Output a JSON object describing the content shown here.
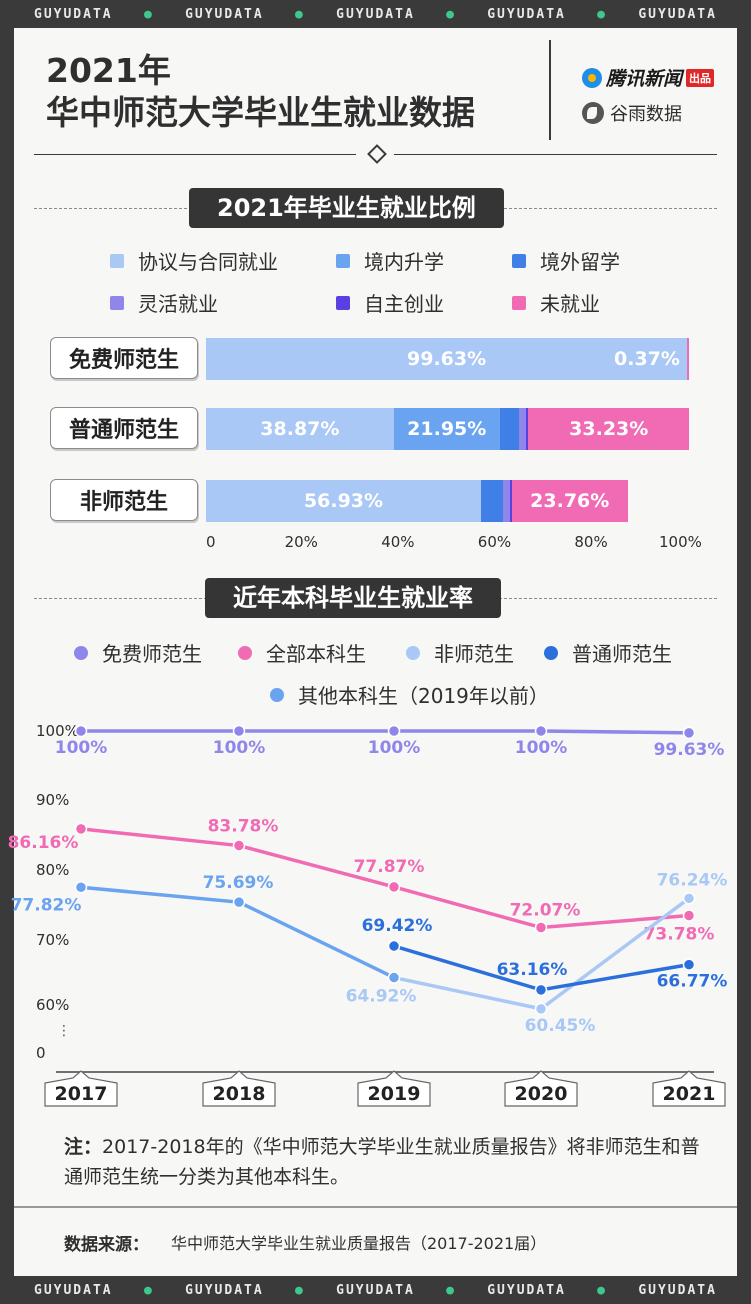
{
  "watermark": {
    "text": "GUYUDATA",
    "count": 5
  },
  "header": {
    "title_line1": "2021年",
    "title_line2": "华中师范大学毕业生就业数据",
    "brand_tencent": "腾讯新闻",
    "brand_tencent_tag": "出品",
    "brand_guyu": "谷雨数据"
  },
  "section1": {
    "title": "2021年毕业生就业比例",
    "legend": [
      {
        "name": "协议与合同就业",
        "color": "#a9c8f5"
      },
      {
        "name": "境内升学",
        "color": "#6aa3ef"
      },
      {
        "name": "境外留学",
        "color": "#3f7fe6"
      },
      {
        "name": "灵活就业",
        "color": "#8f86ea"
      },
      {
        "name": "自主创业",
        "color": "#5a3fe3"
      },
      {
        "name": "未就业",
        "color": "#f06bb4"
      }
    ]
  },
  "chart_data": [
    {
      "type": "bar",
      "orientation": "horizontal-stacked",
      "categories": [
        "免费师范生",
        "普通师范生",
        "非师范生"
      ],
      "series": [
        {
          "name": "协议与合同就业",
          "values": [
            99.63,
            38.87,
            56.93
          ],
          "color": "#a9c8f5"
        },
        {
          "name": "境内升学",
          "values": [
            0,
            21.95,
            0
          ],
          "color": "#6aa3ef"
        },
        {
          "name": "境外留学",
          "values": [
            0,
            4.0,
            4.5
          ],
          "color": "#3f7fe6"
        },
        {
          "name": "灵活就业",
          "values": [
            0,
            1.5,
            1.5
          ],
          "color": "#8f86ea"
        },
        {
          "name": "自主创业",
          "values": [
            0,
            0.45,
            0.5
          ],
          "color": "#5a3fe3"
        },
        {
          "name": "未就业",
          "values": [
            0.37,
            33.23,
            23.76
          ],
          "color": "#f06bb4"
        }
      ],
      "labels": [
        [
          {
            "series": 0,
            "text": "99.63%"
          },
          {
            "series": 5,
            "text": "0.37%",
            "outside": true
          }
        ],
        [
          {
            "series": 0,
            "text": "38.87%"
          },
          {
            "series": 1,
            "text": "21.95%"
          },
          {
            "series": 5,
            "text": "33.23%"
          }
        ],
        [
          {
            "series": 0,
            "text": "56.93%"
          },
          {
            "series": 5,
            "text": "23.76%"
          }
        ]
      ],
      "x_ticks": [
        "0",
        "20%",
        "40%",
        "60%",
        "80%",
        "100%"
      ],
      "xlim": [
        0,
        100
      ]
    },
    {
      "type": "line",
      "title": "近年本科毕业生就业率",
      "x": [
        "2017",
        "2018",
        "2019",
        "2020",
        "2021"
      ],
      "y_ticks": [
        "100%",
        "90%",
        "80%",
        "70%",
        "60%",
        "0"
      ],
      "y_break": true,
      "series": [
        {
          "name": "免费师范生",
          "color": "#8f86ea",
          "values": [
            100,
            100,
            100,
            100,
            99.63
          ],
          "labels": [
            "100%",
            "100%",
            "100%",
            "100%",
            "99.63%"
          ]
        },
        {
          "name": "全部本科生",
          "color": "#f06bb4",
          "values": [
            86.16,
            83.78,
            77.87,
            72.07,
            73.78
          ],
          "labels": [
            "86.16%",
            "83.78%",
            "77.87%",
            "72.07%",
            "73.78%"
          ]
        },
        {
          "name": "非师范生",
          "color": "#a9c8f5",
          "values": [
            null,
            null,
            64.92,
            60.45,
            76.24
          ],
          "labels": [
            null,
            null,
            "64.92%",
            "60.45%",
            "76.24%"
          ]
        },
        {
          "name": "普通师范生",
          "color": "#2b6fdc",
          "values": [
            null,
            null,
            69.42,
            63.16,
            66.77
          ],
          "labels": [
            null,
            null,
            "69.42%",
            "63.16%",
            "66.77%"
          ]
        },
        {
          "name": "其他本科生（2019年以前）",
          "color": "#6aa3ef",
          "values": [
            77.82,
            75.69,
            64.92,
            null,
            null
          ],
          "labels": [
            "77.82%",
            "75.69%",
            null,
            null,
            null
          ]
        }
      ]
    }
  ],
  "section2": {
    "title": "近年本科毕业生就业率"
  },
  "note": {
    "prefix": "注：",
    "text": "2017-2018年的《华中师范大学毕业生就业质量报告》将非师范生和普通师范生统一分类为其他本科生。"
  },
  "source": {
    "label": "数据来源：",
    "text": "华中师范大学毕业生就业质量报告（2017-2021届）"
  }
}
